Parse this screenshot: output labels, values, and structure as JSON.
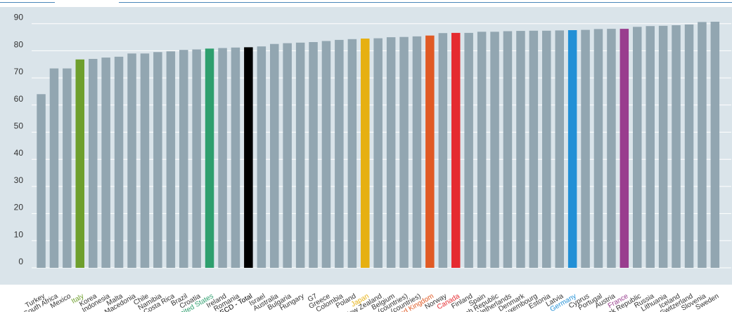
{
  "chart_data": {
    "type": "bar",
    "title": "",
    "xlabel": "",
    "ylabel": "",
    "ylim": [
      0,
      90
    ],
    "yticks": [
      0,
      10,
      20,
      30,
      40,
      50,
      60,
      70,
      80,
      90
    ],
    "grid": "horizontal",
    "categories": [
      "Turkey",
      "South Africa",
      "Mexico",
      "Italy",
      "Korea",
      "Indonesia",
      "Malta",
      "Macedonia",
      "Chile",
      "Namibia",
      "Costa Rica",
      "Brazil",
      "Croatia",
      "United States",
      "Ireland",
      "Romania",
      "OECD - Total",
      "Israel",
      "Australia",
      "Bulgaria",
      "Hungary",
      "G7",
      "Greece",
      "Colombia",
      "Poland",
      "Japan",
      "New Zealand",
      "Belgium",
      "(countries)",
      "(countries)",
      "United Kingdom",
      "Norway",
      "Canada",
      "Finland",
      "Spain",
      "Czech Republic",
      "Netherlands",
      "Denmark",
      "Luxembourg",
      "Estonia",
      "Latvia",
      "Germany",
      "Cyprus",
      "Portugal",
      "Austria",
      "France",
      "Slovak Republic",
      "Russia",
      "Lithuania",
      "Iceland",
      "Switzerland",
      "Slovenia",
      "Sweden"
    ],
    "values": [
      64,
      73.5,
      73.5,
      76.8,
      77,
      77.5,
      77.8,
      79,
      79,
      79.5,
      79.8,
      80.3,
      80.5,
      80.8,
      81,
      81.2,
      81.3,
      81.6,
      82.5,
      82.8,
      83,
      83.2,
      83.6,
      84,
      84.3,
      84.5,
      84.6,
      85,
      85.1,
      85.3,
      85.6,
      86.5,
      86.6,
      86.6,
      87,
      87,
      87.2,
      87.3,
      87.4,
      87.4,
      87.5,
      87.6,
      87.7,
      88,
      88.1,
      88.1,
      88.8,
      89.1,
      89.2,
      89.4,
      89.7,
      90.6,
      90.7
    ],
    "default_color": "#92a6b1",
    "highlight_colors": {
      "Italy": "#6e9f2d",
      "United States": "#2e9f6e",
      "OECD - Total": "#000000",
      "Japan": "#e6b012",
      "United Kingdom": "#e05a24",
      "Canada": "#e52b30",
      "Germany": "#2290d6",
      "France": "#993d8e"
    },
    "label_color": "#333333"
  }
}
